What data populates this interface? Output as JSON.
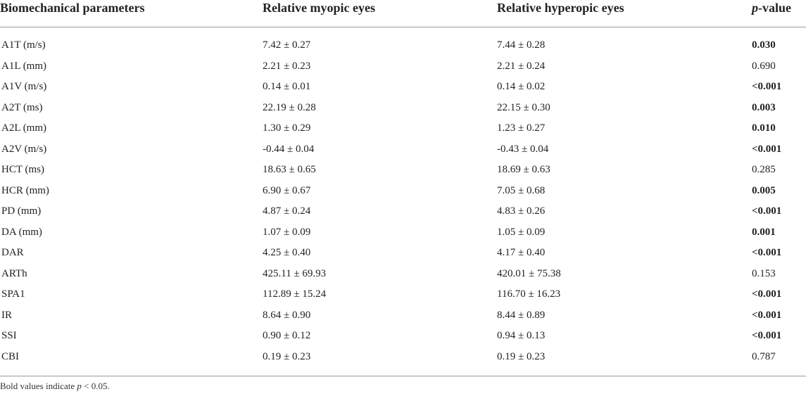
{
  "table": {
    "headers": {
      "param": "Biomechanical parameters",
      "myopic": "Relative myopic eyes",
      "hyperopic": "Relative hyperopic eyes",
      "p_italic": "p",
      "p_rest": "-value"
    },
    "rows": [
      {
        "param": "A1T (m/s)",
        "myopic": "7.42 ± 0.27",
        "hyperopic": "7.44 ± 0.28",
        "p": "0.030",
        "significant": true
      },
      {
        "param": "A1L (mm)",
        "myopic": "2.21 ± 0.23",
        "hyperopic": "2.21 ± 0.24",
        "p": "0.690",
        "significant": false
      },
      {
        "param": "A1V (m/s)",
        "myopic": "0.14 ± 0.01",
        "hyperopic": "0.14 ± 0.02",
        "p": "<0.001",
        "significant": true
      },
      {
        "param": "A2T (ms)",
        "myopic": "22.19 ± 0.28",
        "hyperopic": "22.15 ± 0.30",
        "p": "0.003",
        "significant": true
      },
      {
        "param": "A2L (mm)",
        "myopic": "1.30 ± 0.29",
        "hyperopic": "1.23 ± 0.27",
        "p": "0.010",
        "significant": true
      },
      {
        "param": "A2V (m/s)",
        "myopic": "-0.44 ± 0.04",
        "hyperopic": "-0.43 ± 0.04",
        "p": "<0.001",
        "significant": true
      },
      {
        "param": "HCT (ms)",
        "myopic": "18.63 ± 0.65",
        "hyperopic": "18.69 ± 0.63",
        "p": "0.285",
        "significant": false
      },
      {
        "param": "HCR (mm)",
        "myopic": "6.90 ± 0.67",
        "hyperopic": "7.05 ± 0.68",
        "p": "0.005",
        "significant": true
      },
      {
        "param": "PD (mm)",
        "myopic": "4.87 ± 0.24",
        "hyperopic": "4.83 ± 0.26",
        "p": "<0.001",
        "significant": true
      },
      {
        "param": "DA (mm)",
        "myopic": "1.07 ± 0.09",
        "hyperopic": "1.05 ± 0.09",
        "p": "0.001",
        "significant": true
      },
      {
        "param": "DAR",
        "myopic": "4.25 ± 0.40",
        "hyperopic": "4.17 ± 0.40",
        "p": "<0.001",
        "significant": true
      },
      {
        "param": "ARTh",
        "myopic": "425.11 ± 69.93",
        "hyperopic": "420.01 ± 75.38",
        "p": "0.153",
        "significant": false
      },
      {
        "param": "SPA1",
        "myopic": "112.89 ± 15.24",
        "hyperopic": "116.70 ± 16.23",
        "p": "<0.001",
        "significant": true
      },
      {
        "param": "IR",
        "myopic": "8.64 ± 0.90",
        "hyperopic": "8.44 ± 0.89",
        "p": "<0.001",
        "significant": true
      },
      {
        "param": "SSI",
        "myopic": "0.90 ± 0.12",
        "hyperopic": "0.94 ± 0.13",
        "p": "<0.001",
        "significant": true
      },
      {
        "param": "CBI",
        "myopic": "0.19 ± 0.23",
        "hyperopic": "0.19 ± 0.23",
        "p": "0.787",
        "significant": false
      }
    ],
    "footnote": {
      "prefix": "Bold values indicate ",
      "p_italic": "p",
      "suffix": " < 0.05."
    }
  }
}
